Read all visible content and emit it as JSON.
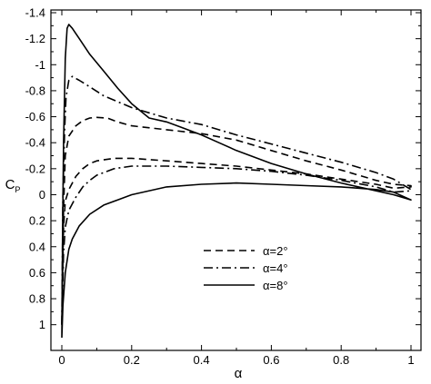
{
  "chart_data": {
    "type": "line",
    "xlabel": "α",
    "ylabel": "C",
    "ylabel_subscript": "P",
    "xlim": [
      0,
      1
    ],
    "ylim": [
      -1.4,
      1.1
    ],
    "y_inverted": true,
    "grid": false,
    "legend_placement": "bottom-center",
    "x_ticks": [
      {
        "value": 0,
        "label": "0"
      },
      {
        "value": 0.2,
        "label": "0.2"
      },
      {
        "value": 0.4,
        "label": "0.4"
      },
      {
        "value": 0.6,
        "label": "0.6"
      },
      {
        "value": 0.8,
        "label": "0.8"
      },
      {
        "value": 1,
        "label": "1"
      }
    ],
    "y_ticks": [
      {
        "value": -1.4,
        "label": "-1.4"
      },
      {
        "value": -1.2,
        "label": "-1.2"
      },
      {
        "value": -1.0,
        "label": "-1"
      },
      {
        "value": -0.8,
        "label": "-0.8"
      },
      {
        "value": -0.6,
        "label": "-0.6"
      },
      {
        "value": -0.4,
        "label": "-0.4"
      },
      {
        "value": -0.2,
        "label": "-0.2"
      },
      {
        "value": 0,
        "label": "0"
      },
      {
        "value": 0.2,
        "label": "0.2"
      },
      {
        "value": 0.4,
        "label": "0.4"
      },
      {
        "value": 0.6,
        "label": "0.6"
      },
      {
        "value": 0.8,
        "label": "0.8"
      },
      {
        "value": 1.0,
        "label": "1"
      }
    ],
    "series": [
      {
        "name": "α=2°",
        "dash": "dashed",
        "upper": [
          [
            0.0,
            1.0
          ],
          [
            0.005,
            0.1
          ],
          [
            0.01,
            -0.3
          ],
          [
            0.02,
            -0.45
          ],
          [
            0.04,
            -0.53
          ],
          [
            0.06,
            -0.57
          ],
          [
            0.08,
            -0.59
          ],
          [
            0.1,
            -0.595
          ],
          [
            0.13,
            -0.59
          ],
          [
            0.16,
            -0.56
          ],
          [
            0.2,
            -0.53
          ],
          [
            0.3,
            -0.5
          ],
          [
            0.4,
            -0.47
          ],
          [
            0.5,
            -0.42
          ],
          [
            0.6,
            -0.34
          ],
          [
            0.7,
            -0.26
          ],
          [
            0.8,
            -0.19
          ],
          [
            0.9,
            -0.11
          ],
          [
            0.95,
            -0.08
          ],
          [
            1.0,
            -0.07
          ]
        ],
        "lower": [
          [
            0.0,
            1.0
          ],
          [
            0.005,
            0.25
          ],
          [
            0.01,
            0.05
          ],
          [
            0.02,
            -0.04
          ],
          [
            0.04,
            -0.14
          ],
          [
            0.06,
            -0.2
          ],
          [
            0.08,
            -0.24
          ],
          [
            0.1,
            -0.26
          ],
          [
            0.15,
            -0.28
          ],
          [
            0.2,
            -0.28
          ],
          [
            0.3,
            -0.26
          ],
          [
            0.4,
            -0.24
          ],
          [
            0.5,
            -0.22
          ],
          [
            0.6,
            -0.19
          ],
          [
            0.7,
            -0.16
          ],
          [
            0.8,
            -0.12
          ],
          [
            0.9,
            -0.08
          ],
          [
            0.95,
            -0.05
          ],
          [
            1.0,
            -0.06
          ]
        ]
      },
      {
        "name": "α=4°",
        "dash": "dash-dot",
        "upper": [
          [
            0.0,
            1.0
          ],
          [
            0.003,
            0.0
          ],
          [
            0.008,
            -0.5
          ],
          [
            0.012,
            -0.75
          ],
          [
            0.02,
            -0.88
          ],
          [
            0.03,
            -0.91
          ],
          [
            0.05,
            -0.88
          ],
          [
            0.08,
            -0.83
          ],
          [
            0.12,
            -0.76
          ],
          [
            0.2,
            -0.67
          ],
          [
            0.25,
            -0.63
          ],
          [
            0.3,
            -0.59
          ],
          [
            0.4,
            -0.54
          ],
          [
            0.5,
            -0.46
          ],
          [
            0.6,
            -0.39
          ],
          [
            0.7,
            -0.32
          ],
          [
            0.8,
            -0.25
          ],
          [
            0.9,
            -0.17
          ],
          [
            0.95,
            -0.12
          ],
          [
            1.0,
            -0.04
          ]
        ],
        "lower": [
          [
            0.0,
            1.0
          ],
          [
            0.005,
            0.45
          ],
          [
            0.01,
            0.25
          ],
          [
            0.02,
            0.12
          ],
          [
            0.04,
            0.02
          ],
          [
            0.06,
            -0.06
          ],
          [
            0.08,
            -0.11
          ],
          [
            0.1,
            -0.15
          ],
          [
            0.15,
            -0.2
          ],
          [
            0.2,
            -0.22
          ],
          [
            0.3,
            -0.22
          ],
          [
            0.4,
            -0.21
          ],
          [
            0.5,
            -0.2
          ],
          [
            0.6,
            -0.18
          ],
          [
            0.7,
            -0.15
          ],
          [
            0.8,
            -0.11
          ],
          [
            0.9,
            -0.06
          ],
          [
            0.95,
            -0.02
          ],
          [
            1.0,
            -0.03
          ]
        ]
      },
      {
        "name": "α=8°",
        "dash": "solid",
        "upper": [
          [
            0.0,
            1.1
          ],
          [
            0.002,
            0.3
          ],
          [
            0.005,
            -0.4
          ],
          [
            0.01,
            -1.05
          ],
          [
            0.015,
            -1.28
          ],
          [
            0.02,
            -1.31
          ],
          [
            0.03,
            -1.28
          ],
          [
            0.05,
            -1.2
          ],
          [
            0.08,
            -1.08
          ],
          [
            0.12,
            -0.95
          ],
          [
            0.16,
            -0.82
          ],
          [
            0.2,
            -0.7
          ],
          [
            0.25,
            -0.59
          ],
          [
            0.3,
            -0.56
          ],
          [
            0.35,
            -0.51
          ],
          [
            0.4,
            -0.46
          ],
          [
            0.45,
            -0.4
          ],
          [
            0.5,
            -0.34
          ],
          [
            0.6,
            -0.24
          ],
          [
            0.7,
            -0.16
          ],
          [
            0.8,
            -0.09
          ],
          [
            0.9,
            -0.03
          ],
          [
            0.95,
            0.0
          ],
          [
            1.0,
            0.04
          ]
        ],
        "lower": [
          [
            0.0,
            1.1
          ],
          [
            0.003,
            0.85
          ],
          [
            0.01,
            0.6
          ],
          [
            0.02,
            0.42
          ],
          [
            0.03,
            0.34
          ],
          [
            0.05,
            0.24
          ],
          [
            0.08,
            0.15
          ],
          [
            0.12,
            0.08
          ],
          [
            0.16,
            0.04
          ],
          [
            0.2,
            0.0
          ],
          [
            0.3,
            -0.06
          ],
          [
            0.4,
            -0.08
          ],
          [
            0.5,
            -0.09
          ],
          [
            0.6,
            -0.08
          ],
          [
            0.7,
            -0.07
          ],
          [
            0.8,
            -0.06
          ],
          [
            0.9,
            -0.04
          ],
          [
            0.95,
            -0.02
          ],
          [
            1.0,
            0.04
          ]
        ]
      }
    ]
  }
}
